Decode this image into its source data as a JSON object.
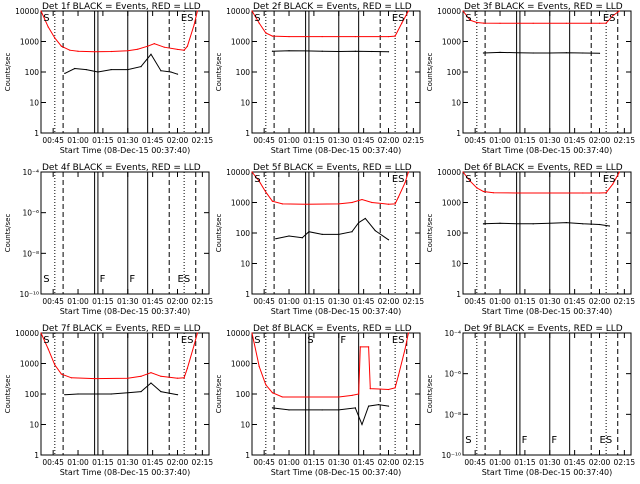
{
  "chart_data": {
    "common": {
      "type": "line",
      "xlabel": "Start Time (08-Dec-15 00:37:40)",
      "ylabel": "Counts/sec",
      "xlim": [
        "00:37:40",
        "02:19:00"
      ],
      "x_ticks": [
        "00:45",
        "01:00",
        "01:15",
        "01:30",
        "01:45",
        "02:00",
        "02:15"
      ],
      "yscale": "log",
      "series_colors": {
        "events": "#000000",
        "lld": "#ff0000"
      },
      "legend": "BLACK = Events, RED = LLD",
      "marker_styles": [
        "dotted",
        "dashed",
        "solid"
      ]
    },
    "panels": [
      {
        "title": "Det 1f BLACK = Events, RED = LLD",
        "ylim": [
          1,
          10000
        ],
        "y_tick_labels": [
          "1",
          "10",
          "100",
          "1000",
          "10000"
        ],
        "markers": [
          {
            "time": "00:46",
            "style": "dotted"
          },
          {
            "time": "00:51",
            "style": "dashed"
          },
          {
            "time": "01:10",
            "style": "solid"
          },
          {
            "time": "01:12",
            "style": "solid"
          },
          {
            "time": "01:30",
            "style": "solid"
          },
          {
            "time": "01:42",
            "style": "solid"
          },
          {
            "time": "01:55",
            "style": "dashed"
          },
          {
            "time": "02:04",
            "style": "dotted"
          },
          {
            "time": "02:11",
            "style": "dashed"
          }
        ],
        "labels": [
          {
            "text": "S",
            "time": "00:39"
          },
          {
            "text": "ES",
            "time": "02:02"
          }
        ],
        "events": {
          "x": [
            "00:52",
            "00:58",
            "01:05",
            "01:12",
            "01:20",
            "01:30",
            "01:38",
            "01:44",
            "01:50",
            "01:56",
            "02:00"
          ],
          "y": [
            90,
            130,
            120,
            100,
            120,
            120,
            150,
            380,
            110,
            100,
            85
          ]
        },
        "lld": {
          "x": [
            "00:37:40",
            "00:42",
            "00:46",
            "00:50",
            "00:55",
            "01:00",
            "01:10",
            "01:20",
            "01:30",
            "01:36",
            "01:42",
            "01:46",
            "01:52",
            "02:00",
            "02:04",
            "02:06",
            "02:10",
            "02:12"
          ],
          "y": [
            10000,
            3000,
            1300,
            700,
            520,
            480,
            460,
            470,
            500,
            560,
            700,
            850,
            650,
            550,
            520,
            700,
            3500,
            10000
          ]
        }
      },
      {
        "title": "Det 2f BLACK = Events, RED = LLD",
        "ylim": [
          1,
          10000
        ],
        "y_tick_labels": [
          "1",
          "10",
          "100",
          "1000",
          "10000"
        ],
        "markers": [
          {
            "time": "00:46",
            "style": "dotted"
          },
          {
            "time": "00:51",
            "style": "dashed"
          },
          {
            "time": "01:10",
            "style": "solid"
          },
          {
            "time": "01:12",
            "style": "solid"
          },
          {
            "time": "01:30",
            "style": "solid"
          },
          {
            "time": "01:42",
            "style": "solid"
          },
          {
            "time": "01:55",
            "style": "dashed"
          },
          {
            "time": "02:04",
            "style": "dotted"
          },
          {
            "time": "02:11",
            "style": "dashed"
          }
        ],
        "labels": [
          {
            "text": "S",
            "time": "00:39"
          },
          {
            "text": "ES",
            "time": "02:02"
          }
        ],
        "events": {
          "x": [
            "00:50",
            "01:00",
            "01:10",
            "01:20",
            "01:30",
            "01:40",
            "01:50",
            "02:00"
          ],
          "y": [
            480,
            500,
            490,
            480,
            470,
            480,
            470,
            460
          ]
        },
        "lld": {
          "x": [
            "00:37:40",
            "00:42",
            "00:46",
            "00:50",
            "01:00",
            "01:20",
            "01:40",
            "02:00",
            "02:04",
            "02:08",
            "02:12"
          ],
          "y": [
            10000,
            4000,
            1900,
            1500,
            1450,
            1450,
            1450,
            1450,
            1500,
            4000,
            10000
          ]
        }
      },
      {
        "title": "Det 3f BLACK = Events, RED = LLD",
        "ylim": [
          1,
          10000
        ],
        "y_tick_labels": [
          "1",
          "10",
          "100",
          "1000",
          "10000"
        ],
        "markers": [
          {
            "time": "00:46",
            "style": "dotted"
          },
          {
            "time": "00:51",
            "style": "dashed"
          },
          {
            "time": "01:10",
            "style": "solid"
          },
          {
            "time": "01:12",
            "style": "solid"
          },
          {
            "time": "01:30",
            "style": "solid"
          },
          {
            "time": "01:42",
            "style": "solid"
          },
          {
            "time": "01:55",
            "style": "dashed"
          },
          {
            "time": "02:04",
            "style": "dotted"
          },
          {
            "time": "02:11",
            "style": "dashed"
          }
        ],
        "labels": [
          {
            "text": "S",
            "time": "00:39"
          },
          {
            "text": "ES",
            "time": "02:02"
          }
        ],
        "events": {
          "x": [
            "00:50",
            "01:00",
            "01:10",
            "01:20",
            "01:30",
            "01:40",
            "01:50",
            "02:00"
          ],
          "y": [
            420,
            440,
            430,
            420,
            420,
            430,
            420,
            410
          ]
        },
        "lld": {
          "x": [
            "00:37:40",
            "00:42",
            "00:46",
            "00:50",
            "01:00",
            "01:20",
            "01:40",
            "02:00",
            "02:04",
            "02:08",
            "02:12"
          ],
          "y": [
            10000,
            5000,
            4200,
            4000,
            3950,
            3950,
            3950,
            3950,
            4000,
            7000,
            10000
          ]
        }
      },
      {
        "title": "Det 4f BLACK = Events, RED = LLD",
        "ylim": [
          1e-10,
          0.0001
        ],
        "y_tick_labels": [
          "10⁻¹⁰",
          "10⁻⁸",
          "10⁻⁶",
          "10⁻⁴"
        ],
        "markers": [
          {
            "time": "00:46",
            "style": "dotted"
          },
          {
            "time": "00:51",
            "style": "dashed"
          },
          {
            "time": "01:10",
            "style": "solid"
          },
          {
            "time": "01:12",
            "style": "solid"
          },
          {
            "time": "01:30",
            "style": "solid"
          },
          {
            "time": "01:42",
            "style": "solid"
          },
          {
            "time": "01:55",
            "style": "dashed"
          },
          {
            "time": "02:04",
            "style": "dotted"
          },
          {
            "time": "02:11",
            "style": "dashed"
          }
        ],
        "labels": [
          {
            "text": "S",
            "time": "00:39"
          },
          {
            "text": "F",
            "time": "01:13"
          },
          {
            "text": "F",
            "time": "01:31"
          },
          {
            "text": "ES",
            "time": "02:00"
          }
        ],
        "events": null,
        "lld": null
      },
      {
        "title": "Det 5f BLACK = Events, RED = LLD",
        "ylim": [
          1,
          10000
        ],
        "y_tick_labels": [
          "1",
          "10",
          "100",
          "1000",
          "10000"
        ],
        "markers": [
          {
            "time": "00:46",
            "style": "dotted"
          },
          {
            "time": "00:51",
            "style": "dashed"
          },
          {
            "time": "01:10",
            "style": "solid"
          },
          {
            "time": "01:12",
            "style": "solid"
          },
          {
            "time": "01:30",
            "style": "solid"
          },
          {
            "time": "01:42",
            "style": "solid"
          },
          {
            "time": "01:55",
            "style": "dashed"
          },
          {
            "time": "02:04",
            "style": "dotted"
          },
          {
            "time": "02:11",
            "style": "dashed"
          }
        ],
        "labels": [
          {
            "text": "S",
            "time": "00:39"
          },
          {
            "text": "ES",
            "time": "02:02"
          }
        ],
        "events": {
          "x": [
            "00:52",
            "01:00",
            "01:08",
            "01:12",
            "01:20",
            "01:30",
            "01:38",
            "01:42",
            "01:46",
            "01:52",
            "02:00"
          ],
          "y": [
            65,
            80,
            70,
            110,
            90,
            90,
            110,
            220,
            300,
            120,
            60
          ]
        },
        "lld": {
          "x": [
            "00:37:40",
            "00:42",
            "00:46",
            "00:50",
            "00:56",
            "01:10",
            "01:30",
            "01:38",
            "01:44",
            "01:50",
            "02:00",
            "02:04",
            "02:06",
            "02:10",
            "02:12"
          ],
          "y": [
            10000,
            5000,
            2200,
            1100,
            900,
            880,
            900,
            1000,
            1250,
            1000,
            880,
            900,
            1500,
            4500,
            10000
          ]
        }
      },
      {
        "title": "Det 6f BLACK = Events, RED = LLD",
        "ylim": [
          1,
          10000
        ],
        "y_tick_labels": [
          "1",
          "10",
          "100",
          "1000",
          "10000"
        ],
        "markers": [
          {
            "time": "00:46",
            "style": "dotted"
          },
          {
            "time": "00:51",
            "style": "dashed"
          },
          {
            "time": "01:10",
            "style": "solid"
          },
          {
            "time": "01:12",
            "style": "solid"
          },
          {
            "time": "01:30",
            "style": "solid"
          },
          {
            "time": "01:42",
            "style": "solid"
          },
          {
            "time": "01:55",
            "style": "dashed"
          },
          {
            "time": "02:04",
            "style": "dotted"
          },
          {
            "time": "02:11",
            "style": "dashed"
          }
        ],
        "labels": [
          {
            "text": "S",
            "time": "00:39"
          },
          {
            "text": "ES",
            "time": "02:02"
          }
        ],
        "events": {
          "x": [
            "00:50",
            "01:00",
            "01:10",
            "01:20",
            "01:30",
            "01:40",
            "01:50",
            "02:00",
            "02:06"
          ],
          "y": [
            200,
            210,
            200,
            200,
            210,
            220,
            200,
            190,
            170
          ]
        },
        "lld": {
          "x": [
            "00:37:40",
            "00:42",
            "00:46",
            "00:50",
            "00:56",
            "01:10",
            "01:30",
            "01:50",
            "02:00",
            "02:04",
            "02:08",
            "02:12"
          ],
          "y": [
            10000,
            5000,
            3000,
            2300,
            2100,
            2050,
            2050,
            2050,
            2050,
            2100,
            4000,
            10000
          ]
        }
      },
      {
        "title": "Det 7f BLACK = Events, RED = LLD",
        "ylim": [
          1,
          10000
        ],
        "y_tick_labels": [
          "1",
          "10",
          "100",
          "1000",
          "10000"
        ],
        "markers": [
          {
            "time": "00:46",
            "style": "dotted"
          },
          {
            "time": "00:51",
            "style": "dashed"
          },
          {
            "time": "01:10",
            "style": "solid"
          },
          {
            "time": "01:12",
            "style": "solid"
          },
          {
            "time": "01:30",
            "style": "solid"
          },
          {
            "time": "01:42",
            "style": "solid"
          },
          {
            "time": "01:55",
            "style": "dashed"
          },
          {
            "time": "02:04",
            "style": "dotted"
          },
          {
            "time": "02:11",
            "style": "dashed"
          }
        ],
        "labels": [
          {
            "text": "S",
            "time": "00:39"
          },
          {
            "text": "ES",
            "time": "02:02"
          }
        ],
        "events": {
          "x": [
            "00:52",
            "01:00",
            "01:10",
            "01:20",
            "01:30",
            "01:38",
            "01:44",
            "01:50",
            "02:00"
          ],
          "y": [
            95,
            100,
            100,
            100,
            110,
            120,
            230,
            120,
            95
          ]
        },
        "lld": {
          "x": [
            "00:37:40",
            "00:42",
            "00:46",
            "00:50",
            "00:56",
            "01:10",
            "01:30",
            "01:38",
            "01:44",
            "01:50",
            "02:00",
            "02:04",
            "02:06",
            "02:10",
            "02:12"
          ],
          "y": [
            10000,
            3000,
            900,
            450,
            340,
            320,
            330,
            380,
            500,
            380,
            330,
            340,
            700,
            4000,
            10000
          ]
        }
      },
      {
        "title": "Det 8f BLACK = Events, RED = LLD",
        "ylim": [
          1,
          10000
        ],
        "y_tick_labels": [
          "1",
          "10",
          "100",
          "1000",
          "10000"
        ],
        "markers": [
          {
            "time": "00:46",
            "style": "dotted"
          },
          {
            "time": "00:51",
            "style": "dashed"
          },
          {
            "time": "01:10",
            "style": "solid"
          },
          {
            "time": "01:12",
            "style": "solid"
          },
          {
            "time": "01:30",
            "style": "solid"
          },
          {
            "time": "01:42",
            "style": "solid"
          },
          {
            "time": "01:55",
            "style": "dashed"
          },
          {
            "time": "02:04",
            "style": "dotted"
          },
          {
            "time": "02:11",
            "style": "dashed"
          }
        ],
        "labels": [
          {
            "text": "S",
            "time": "00:39"
          },
          {
            "text": "S",
            "time": "01:11"
          },
          {
            "text": "F",
            "time": "01:31"
          },
          {
            "text": "ES",
            "time": "02:02"
          }
        ],
        "events": {
          "x": [
            "00:50",
            "01:00",
            "01:10",
            "01:20",
            "01:30",
            "01:40",
            "01:44",
            "01:48",
            "01:54",
            "02:00"
          ],
          "y": [
            35,
            30,
            30,
            30,
            30,
            35,
            10,
            40,
            45,
            40
          ]
        },
        "lld": {
          "x": [
            "00:37:40",
            "00:42",
            "00:46",
            "00:50",
            "00:56",
            "01:10",
            "01:30",
            "01:38",
            "01:42",
            "01:43",
            "01:48",
            "01:49",
            "02:00",
            "02:04",
            "02:06",
            "02:10",
            "02:12"
          ],
          "y": [
            10000,
            800,
            200,
            110,
            80,
            80,
            80,
            90,
            100,
            3500,
            3500,
            150,
            140,
            160,
            400,
            3000,
            10000
          ]
        }
      },
      {
        "title": "Det 9f BLACK = Events, RED = LLD",
        "ylim": [
          1e-10,
          0.0001
        ],
        "y_tick_labels": [
          "10⁻¹⁰",
          "10⁻⁸",
          "10⁻⁶",
          "10⁻⁴"
        ],
        "markers": [
          {
            "time": "00:46",
            "style": "dotted"
          },
          {
            "time": "00:51",
            "style": "dashed"
          },
          {
            "time": "01:10",
            "style": "solid"
          },
          {
            "time": "01:12",
            "style": "solid"
          },
          {
            "time": "01:30",
            "style": "solid"
          },
          {
            "time": "01:42",
            "style": "solid"
          },
          {
            "time": "01:55",
            "style": "dashed"
          },
          {
            "time": "02:04",
            "style": "dotted"
          },
          {
            "time": "02:11",
            "style": "dashed"
          }
        ],
        "labels": [
          {
            "text": "S",
            "time": "00:39"
          },
          {
            "text": "F",
            "time": "01:13"
          },
          {
            "text": "F",
            "time": "01:31"
          },
          {
            "text": "ES",
            "time": "02:00"
          }
        ],
        "events": null,
        "lld": null
      }
    ]
  }
}
